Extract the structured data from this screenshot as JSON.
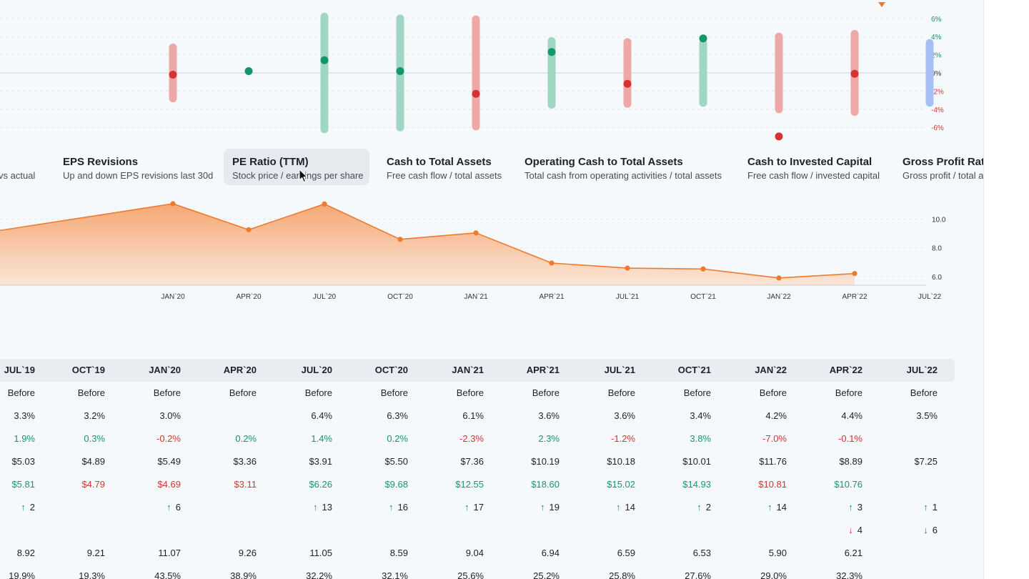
{
  "colors": {
    "positive": "#14966b",
    "negative": "#d63231",
    "positive_bar": "#9fd7c2",
    "negative_bar": "#eea8a8",
    "neutral_bar": "#a7bff2",
    "accent": "#ee7a2f"
  },
  "chart_data": [
    {
      "type": "range-dot",
      "y_ticks": [
        "6%",
        "4%",
        "2%",
        "0%",
        "-2%",
        "-4%",
        "-6%"
      ],
      "ylim": [
        -6,
        6
      ],
      "points": [
        {
          "low": -2.8,
          "high": 2.8,
          "value": -0.2,
          "sign": "negative"
        },
        {
          "low": null,
          "high": null,
          "value": 0.2,
          "sign": "positive"
        },
        {
          "low": -6.2,
          "high": 6.2,
          "value": 1.4,
          "sign": "positive"
        },
        {
          "low": -6.0,
          "high": 6.0,
          "value": 0.2,
          "sign": "positive"
        },
        {
          "low": -5.9,
          "high": 5.9,
          "value": -2.3,
          "sign": "negative"
        },
        {
          "low": -3.5,
          "high": 3.5,
          "value": 2.3,
          "sign": "positive"
        },
        {
          "low": -3.4,
          "high": 3.4,
          "value": -1.2,
          "sign": "negative"
        },
        {
          "low": -3.3,
          "high": 3.3,
          "value": 3.8,
          "sign": "positive"
        },
        {
          "low": -4.0,
          "high": 4.0,
          "value": -7.0,
          "sign": "negative"
        },
        {
          "low": -4.3,
          "high": 4.3,
          "value": -0.1,
          "sign": "negative"
        },
        {
          "low": -3.3,
          "high": 3.3,
          "value": null,
          "sign": "neutral"
        }
      ]
    },
    {
      "type": "area",
      "categories": [
        "JAN`20",
        "APR`20",
        "JUL`20",
        "OCT`20",
        "JAN`21",
        "APR`21",
        "JUL`21",
        "OCT`21",
        "JAN`22",
        "APR`22",
        "JUL`22"
      ],
      "values": [
        11.07,
        9.26,
        11.05,
        8.59,
        9.04,
        6.94,
        6.59,
        6.53,
        5.9,
        6.21,
        null
      ],
      "leading_value": 9.21,
      "y_ticks": [
        "10.0",
        "8.0",
        "6.0"
      ],
      "ylim": [
        5.0,
        12.0
      ]
    }
  ],
  "metric_tabs": [
    {
      "title": "",
      "subtitle": "vs actual"
    },
    {
      "title": "EPS Revisions",
      "subtitle": "Up and down EPS revisions last 30d"
    },
    {
      "title": "PE Ratio (TTM)",
      "subtitle": "Stock price / earnings per share"
    },
    {
      "title": "Cash to Total Assets",
      "subtitle": "Free cash flow / total assets"
    },
    {
      "title": "Operating Cash to Total Assets",
      "subtitle": "Total cash from operating activities / total assets"
    },
    {
      "title": "Cash to Invested Capital",
      "subtitle": "Free cash flow / invested capital"
    },
    {
      "title": "Gross Profit Ratio",
      "subtitle": "Gross profit / total assets"
    }
  ],
  "table": {
    "columns": [
      "JUL`19",
      "OCT`19",
      "JAN`20",
      "APR`20",
      "JUL`20",
      "OCT`20",
      "JAN`21",
      "APR`21",
      "JUL`21",
      "OCT`21",
      "JAN`22",
      "APR`22",
      "JUL`22"
    ],
    "rows": [
      [
        {
          "t": "Before"
        },
        {
          "t": "Before"
        },
        {
          "t": "Before"
        },
        {
          "t": "Before"
        },
        {
          "t": "Before"
        },
        {
          "t": "Before"
        },
        {
          "t": "Before"
        },
        {
          "t": "Before"
        },
        {
          "t": "Before"
        },
        {
          "t": "Before"
        },
        {
          "t": "Before"
        },
        {
          "t": "Before"
        },
        {
          "t": "Before"
        }
      ],
      [
        {
          "t": "3.3%"
        },
        {
          "t": "3.2%"
        },
        {
          "t": "3.0%"
        },
        {
          "t": ""
        },
        {
          "t": "6.4%"
        },
        {
          "t": "6.3%"
        },
        {
          "t": "6.1%"
        },
        {
          "t": "3.6%"
        },
        {
          "t": "3.6%"
        },
        {
          "t": "3.4%"
        },
        {
          "t": "4.2%"
        },
        {
          "t": "4.4%"
        },
        {
          "t": "3.5%"
        }
      ],
      [
        {
          "t": "1.9%",
          "c": "pos"
        },
        {
          "t": "0.3%",
          "c": "pos"
        },
        {
          "t": "-0.2%",
          "c": "neg"
        },
        {
          "t": "0.2%",
          "c": "pos"
        },
        {
          "t": "1.4%",
          "c": "pos"
        },
        {
          "t": "0.2%",
          "c": "pos"
        },
        {
          "t": "-2.3%",
          "c": "neg"
        },
        {
          "t": "2.3%",
          "c": "pos"
        },
        {
          "t": "-1.2%",
          "c": "neg"
        },
        {
          "t": "3.8%",
          "c": "pos"
        },
        {
          "t": "-7.0%",
          "c": "neg"
        },
        {
          "t": "-0.1%",
          "c": "neg"
        },
        {
          "t": ""
        }
      ],
      [
        {
          "t": "$5.03"
        },
        {
          "t": "$4.89"
        },
        {
          "t": "$5.49"
        },
        {
          "t": "$3.36"
        },
        {
          "t": "$3.91"
        },
        {
          "t": "$5.50"
        },
        {
          "t": "$7.36"
        },
        {
          "t": "$10.19"
        },
        {
          "t": "$10.18"
        },
        {
          "t": "$10.01"
        },
        {
          "t": "$11.76"
        },
        {
          "t": "$8.89"
        },
        {
          "t": "$7.25"
        }
      ],
      [
        {
          "t": "$5.81",
          "c": "pos"
        },
        {
          "t": "$4.79",
          "c": "neg"
        },
        {
          "t": "$4.69",
          "c": "neg"
        },
        {
          "t": "$3.11",
          "c": "neg"
        },
        {
          "t": "$6.26",
          "c": "pos"
        },
        {
          "t": "$9.68",
          "c": "pos"
        },
        {
          "t": "$12.55",
          "c": "pos"
        },
        {
          "t": "$18.60",
          "c": "pos"
        },
        {
          "t": "$15.02",
          "c": "pos"
        },
        {
          "t": "$14.93",
          "c": "pos"
        },
        {
          "t": "$10.81",
          "c": "neg"
        },
        {
          "t": "$10.76",
          "c": "pos"
        },
        {
          "t": ""
        }
      ],
      [
        {
          "t": "2",
          "a": "up"
        },
        {
          "t": ""
        },
        {
          "t": "6",
          "a": "up"
        },
        {
          "t": ""
        },
        {
          "t": "13",
          "a": "up"
        },
        {
          "t": "16",
          "a": "up"
        },
        {
          "t": "17",
          "a": "up"
        },
        {
          "t": "19",
          "a": "up"
        },
        {
          "t": "14",
          "a": "up"
        },
        {
          "t": "2",
          "a": "up"
        },
        {
          "t": "14",
          "a": "up"
        },
        {
          "t": "3",
          "a": "up"
        },
        {
          "t": "1",
          "a": "up"
        }
      ],
      [
        {
          "t": ""
        },
        {
          "t": ""
        },
        {
          "t": ""
        },
        {
          "t": ""
        },
        {
          "t": ""
        },
        {
          "t": ""
        },
        {
          "t": ""
        },
        {
          "t": ""
        },
        {
          "t": ""
        },
        {
          "t": ""
        },
        {
          "t": ""
        },
        {
          "t": "4",
          "a": "down"
        },
        {
          "t": "6",
          "a": "down"
        }
      ],
      [
        {
          "t": "8.92"
        },
        {
          "t": "9.21"
        },
        {
          "t": "11.07"
        },
        {
          "t": "9.26"
        },
        {
          "t": "11.05"
        },
        {
          "t": "8.59"
        },
        {
          "t": "9.04"
        },
        {
          "t": "6.94"
        },
        {
          "t": "6.59"
        },
        {
          "t": "6.53"
        },
        {
          "t": "5.90"
        },
        {
          "t": "6.21"
        },
        {
          "t": ""
        }
      ],
      [
        {
          "t": "19.9%"
        },
        {
          "t": "19.3%"
        },
        {
          "t": "43.5%"
        },
        {
          "t": "38.9%"
        },
        {
          "t": "32.2%"
        },
        {
          "t": "32.1%"
        },
        {
          "t": "25.6%"
        },
        {
          "t": "25.2%"
        },
        {
          "t": "25.8%"
        },
        {
          "t": "27.6%"
        },
        {
          "t": "29.0%"
        },
        {
          "t": "32.3%"
        },
        {
          "t": ""
        }
      ]
    ]
  }
}
